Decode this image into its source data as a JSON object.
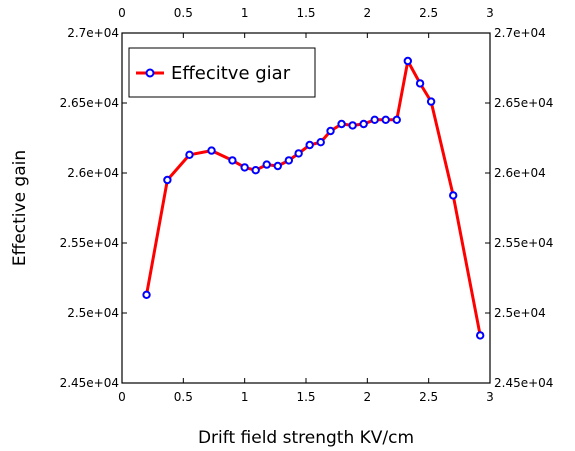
{
  "chart_data": {
    "type": "line",
    "title": "",
    "xlabel": "Drift field strength  KV/cm",
    "ylabel": "Effective gain",
    "xlim": [
      0,
      3
    ],
    "ylim": [
      24500,
      27000
    ],
    "x_ticks": [
      0,
      0.5,
      1,
      1.5,
      2,
      2.5,
      3
    ],
    "x_tick_labels": [
      "0",
      "0.5",
      "1",
      "1.5",
      "2",
      "2.5",
      "3"
    ],
    "y_ticks": [
      24500,
      25000,
      25500,
      26000,
      26500,
      27000
    ],
    "y_tick_labels": [
      "2.45e+04",
      "2.5e+04",
      "2.55e+04",
      "2.6e+04",
      "2.65e+04",
      "2.7e+04"
    ],
    "grid": false,
    "legend_position": "top-left",
    "colors": {
      "line": "#ff0000",
      "marker_edge": "#0000ff",
      "marker_face": "#ffffff"
    },
    "series": [
      {
        "name": "Effecitve giar",
        "x": [
          0.2,
          0.37,
          0.55,
          0.73,
          0.9,
          1.0,
          1.09,
          1.18,
          1.27,
          1.36,
          1.44,
          1.53,
          1.62,
          1.7,
          1.79,
          1.88,
          1.97,
          2.06,
          2.15,
          2.24,
          2.33,
          2.43,
          2.52,
          2.7,
          2.92
        ],
        "y": [
          25130,
          25950,
          26130,
          26160,
          26090,
          26040,
          26020,
          26060,
          26050,
          26090,
          26140,
          26200,
          26220,
          26300,
          26350,
          26340,
          26350,
          26380,
          26380,
          26380,
          26800,
          26640,
          26510,
          25840,
          24840
        ]
      }
    ]
  }
}
